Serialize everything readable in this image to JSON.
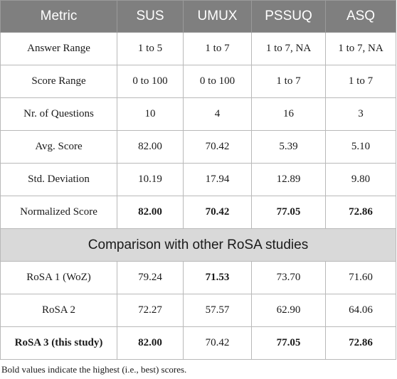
{
  "table": {
    "headers": [
      "Metric",
      "SUS",
      "UMUX",
      "PSSUQ",
      "ASQ"
    ],
    "rows": [
      {
        "label": "Answer Range",
        "label_bold": false,
        "cells": [
          {
            "v": "1 to 5",
            "bold": false
          },
          {
            "v": "1 to 7",
            "bold": false
          },
          {
            "v": "1 to 7, NA",
            "bold": false
          },
          {
            "v": "1 to 7, NA",
            "bold": false
          }
        ]
      },
      {
        "label": "Score Range",
        "label_bold": false,
        "cells": [
          {
            "v": "0 to 100",
            "bold": false
          },
          {
            "v": "0 to 100",
            "bold": false
          },
          {
            "v": "1 to 7",
            "bold": false
          },
          {
            "v": "1 to 7",
            "bold": false
          }
        ]
      },
      {
        "label": "Nr. of Questions",
        "label_bold": false,
        "cells": [
          {
            "v": "10",
            "bold": false
          },
          {
            "v": "4",
            "bold": false
          },
          {
            "v": "16",
            "bold": false
          },
          {
            "v": "3",
            "bold": false
          }
        ]
      },
      {
        "label": "Avg. Score",
        "label_bold": false,
        "cells": [
          {
            "v": "82.00",
            "bold": false
          },
          {
            "v": "70.42",
            "bold": false
          },
          {
            "v": "5.39",
            "bold": false
          },
          {
            "v": "5.10",
            "bold": false
          }
        ]
      },
      {
        "label": "Std. Deviation",
        "label_bold": false,
        "cells": [
          {
            "v": "10.19",
            "bold": false
          },
          {
            "v": "17.94",
            "bold": false
          },
          {
            "v": "12.89",
            "bold": false
          },
          {
            "v": "9.80",
            "bold": false
          }
        ]
      },
      {
        "label": "Normalized Score",
        "label_bold": false,
        "cells": [
          {
            "v": "82.00",
            "bold": true
          },
          {
            "v": "70.42",
            "bold": true
          },
          {
            "v": "77.05",
            "bold": true
          },
          {
            "v": "72.86",
            "bold": true
          }
        ]
      }
    ],
    "section_title": "Comparison with other RoSA studies",
    "comparison_rows": [
      {
        "label": "RoSA 1 (WoZ)",
        "label_bold": false,
        "cells": [
          {
            "v": "79.24",
            "bold": false
          },
          {
            "v": "71.53",
            "bold": true
          },
          {
            "v": "73.70",
            "bold": false
          },
          {
            "v": "71.60",
            "bold": false
          }
        ]
      },
      {
        "label": "RoSA 2",
        "label_bold": false,
        "cells": [
          {
            "v": "72.27",
            "bold": false
          },
          {
            "v": "57.57",
            "bold": false
          },
          {
            "v": "62.90",
            "bold": false
          },
          {
            "v": "64.06",
            "bold": false
          }
        ]
      },
      {
        "label": "RoSA 3 (this study)",
        "label_bold": true,
        "cells": [
          {
            "v": "82.00",
            "bold": true
          },
          {
            "v": "70.42",
            "bold": false
          },
          {
            "v": "77.05",
            "bold": true
          },
          {
            "v": "72.86",
            "bold": true
          }
        ]
      }
    ]
  },
  "footnote": "Bold values indicate the highest (i.e., best) scores."
}
